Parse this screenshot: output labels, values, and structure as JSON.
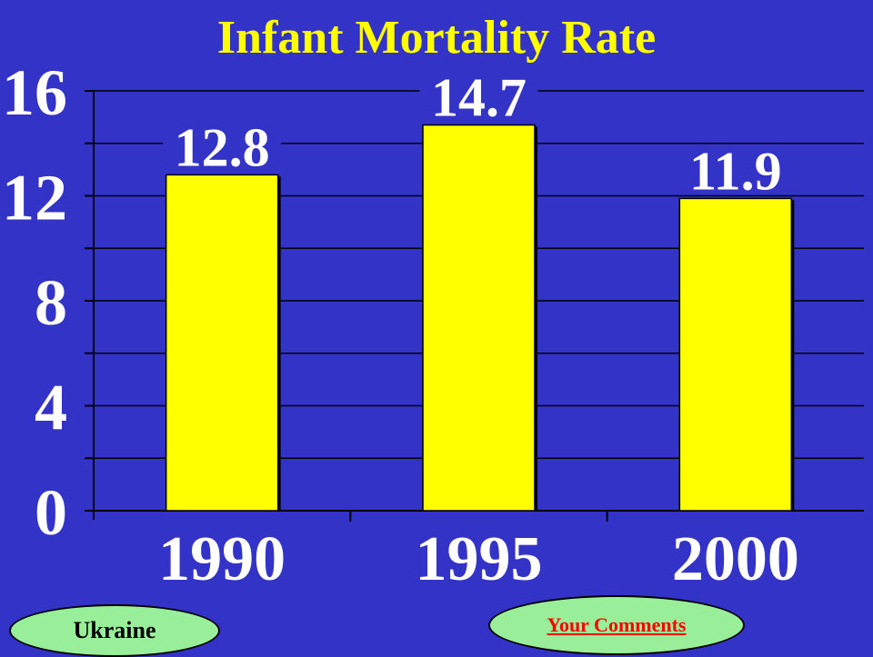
{
  "chart_data": {
    "type": "bar",
    "title": "Infant Mortality Rate",
    "categories": [
      "1990",
      "1995",
      "2000"
    ],
    "values": [
      12.8,
      14.7,
      11.9
    ],
    "data_labels": [
      "12.8",
      "14.7",
      "11.9"
    ],
    "ylim": [
      0,
      16
    ],
    "y_ticks": [
      0,
      4,
      8,
      12,
      16
    ],
    "grid": true,
    "colors": {
      "background": "#3333c7",
      "bar": "#ffff00",
      "grid": "#000000",
      "title": "#ffff00",
      "text": "#ffffff"
    }
  },
  "buttons": {
    "ukraine": "Ukraine",
    "comments": "Your Comments"
  },
  "colors": {
    "button_fill": "#99ee99",
    "link": "#ff0000"
  }
}
